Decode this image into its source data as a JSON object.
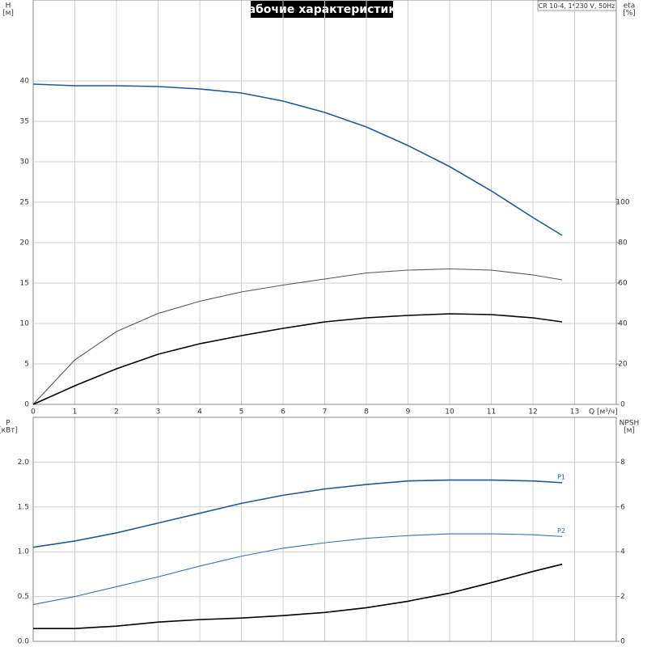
{
  "chart_data": [
    {
      "type": "line",
      "title": "Рабочие характеристики",
      "annotation": "CR 10-4, 1*230 V, 50Hz",
      "ylabel": "H",
      "yunit": "[м]",
      "y2label": "eta",
      "y2unit": "[%]",
      "xlabel": "Q [м³/ч]",
      "x": [
        0,
        1,
        2,
        3,
        4,
        5,
        6,
        7,
        8,
        9,
        10,
        11,
        12,
        12.7
      ],
      "xlim": [
        0,
        14
      ],
      "xticks": [
        0,
        1,
        2,
        3,
        4,
        5,
        6,
        7,
        8,
        9,
        10,
        11,
        12,
        13
      ],
      "ylim": [
        0,
        50
      ],
      "yticks": [
        0,
        5,
        10,
        15,
        20,
        25,
        30,
        35,
        40
      ],
      "y2lim": [
        0,
        200
      ],
      "y2ticks": [
        0,
        20,
        40,
        60,
        80,
        100
      ],
      "grid": true,
      "series": [
        {
          "color": "#1f5a99",
          "values": [
            39.6,
            39.4,
            39.4,
            39.3,
            39.0,
            38.5,
            37.5,
            36.1,
            34.3,
            32.0,
            29.4,
            26.4,
            23.1,
            20.9
          ]
        },
        {
          "color": "#555555",
          "axis": "y2",
          "values": [
            0,
            22,
            36,
            45,
            51,
            55.6,
            59,
            62,
            65,
            66.4,
            67,
            66.4,
            64,
            61.6
          ]
        },
        {
          "color": "#000000",
          "axis": "y2",
          "values": [
            0,
            9.2,
            17.6,
            24.8,
            30,
            34,
            37.6,
            40.8,
            42.8,
            44,
            44.8,
            44.4,
            42.8,
            40.8
          ]
        }
      ]
    },
    {
      "type": "line",
      "ylabel": "P",
      "yunit": "[кВт]",
      "y2label": "NPSH",
      "y2unit": "[м]",
      "x": [
        0,
        1,
        2,
        3,
        4,
        5,
        6,
        7,
        8,
        9,
        10,
        11,
        12,
        12.7
      ],
      "xlim": [
        0,
        14
      ],
      "ylim": [
        0,
        2.5
      ],
      "yticks": [
        {
          "value": 0,
          "label": "0.0"
        },
        0.5,
        {
          "value": 1,
          "label": "1.0"
        },
        1.5,
        {
          "value": 2,
          "label": "2.0"
        }
      ],
      "y2lim": [
        0,
        10
      ],
      "y2ticks": [
        0,
        2,
        4,
        6,
        8
      ],
      "grid": true,
      "series": [
        {
          "name": "P1",
          "color": "#1f5a99",
          "values": [
            1.05,
            1.12,
            1.21,
            1.32,
            1.43,
            1.54,
            1.63,
            1.7,
            1.75,
            1.79,
            1.8,
            1.8,
            1.79,
            1.77
          ]
        },
        {
          "name": "P2",
          "color": "#3d6fab",
          "values": [
            0.41,
            0.5,
            0.61,
            0.72,
            0.84,
            0.95,
            1.04,
            1.1,
            1.15,
            1.18,
            1.2,
            1.2,
            1.19,
            1.17
          ]
        },
        {
          "color": "#000000",
          "axis": "y2",
          "values": [
            0.57,
            0.57,
            0.68,
            0.86,
            0.97,
            1.04,
            1.15,
            1.29,
            1.5,
            1.79,
            2.15,
            2.62,
            3.12,
            3.44
          ]
        }
      ]
    }
  ]
}
